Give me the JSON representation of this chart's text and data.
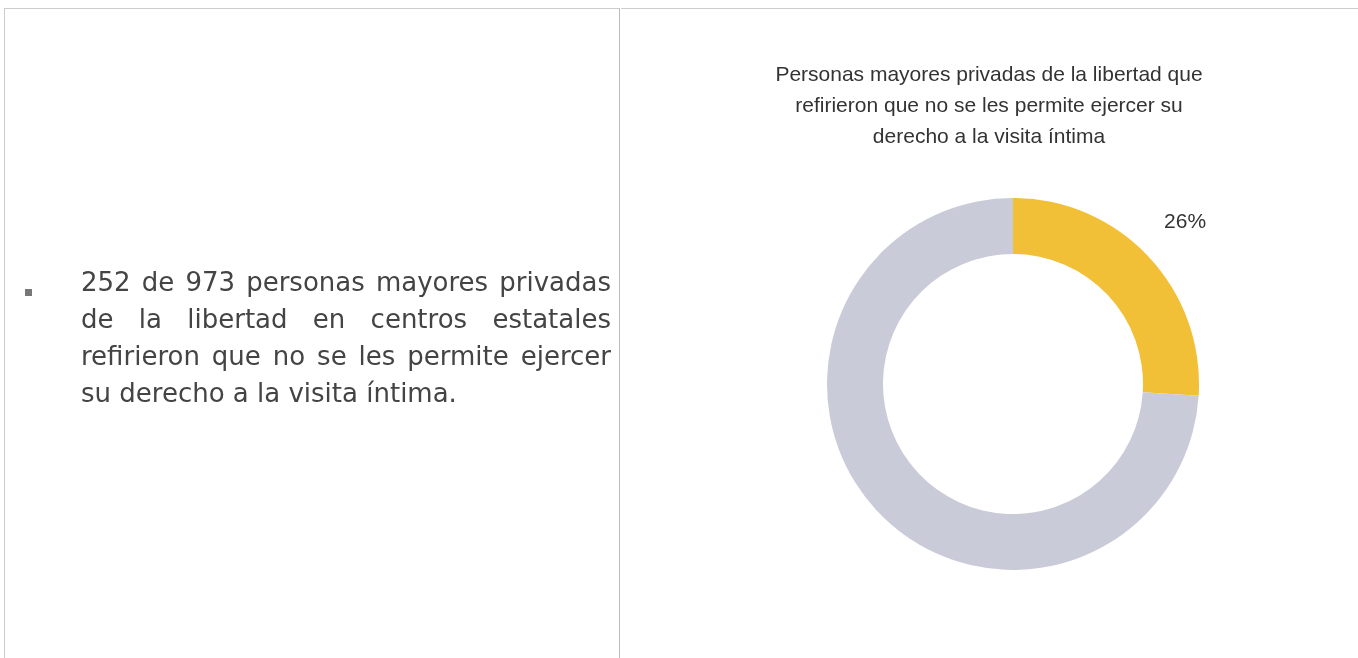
{
  "chart_data": [
    {
      "type": "other",
      "annotations": [
        "252 de 973 personas mayores privadas de la libertad en centros estatales refirieron que no se les permite ejercer su derecho a la visita íntima."
      ]
    },
    {
      "type": "donut",
      "title": "Personas mayores privadas de la libertad que refirieron que no se les permite ejercer su derecho a la visita íntima",
      "categories": [
        null,
        null
      ],
      "values": [
        26,
        74
      ],
      "colors": [
        "#f2c037",
        "#c9cbd9"
      ],
      "value_labels": [
        "26%",
        null
      ],
      "legend": false
    }
  ]
}
